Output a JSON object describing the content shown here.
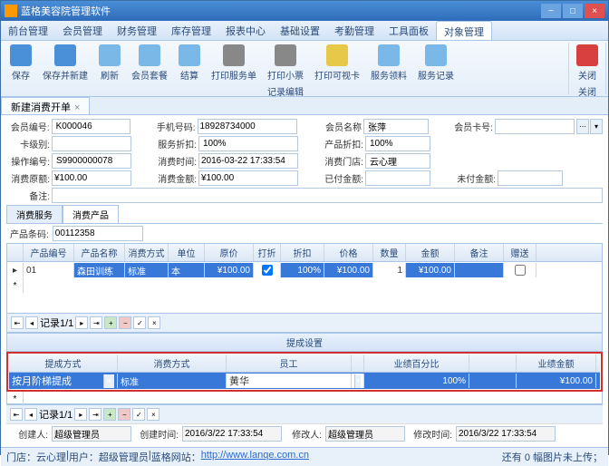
{
  "title": "蓝格美容院管理软件",
  "menu": [
    "前台管理",
    "会员管理",
    "财务管理",
    "库存管理",
    "报表中心",
    "基础设置",
    "考勤管理",
    "工具面板",
    "对象管理"
  ],
  "menu_active": 8,
  "tools": [
    {
      "l": "保存",
      "c": "save"
    },
    {
      "l": "保存并新建",
      "c": "save"
    },
    {
      "l": "刷新",
      "c": ""
    },
    {
      "l": "会员套餐",
      "c": ""
    },
    {
      "l": "结算",
      "c": ""
    },
    {
      "l": "打印服务单",
      "c": "print"
    },
    {
      "l": "打印小票",
      "c": "print"
    },
    {
      "l": "打印可视卡",
      "c": "yel"
    },
    {
      "l": "服务领料",
      "c": ""
    },
    {
      "l": "服务记录",
      "c": ""
    }
  ],
  "close_l": "关闭",
  "group1": "记录编辑",
  "group2": "关闭",
  "tab": "新建消费开单",
  "f": {
    "memno_l": "会员编号:",
    "memno": "K000046",
    "phone_l": "手机号码:",
    "phone": "18928734000",
    "name_l": "会员名称",
    "name": "张萍",
    "card_l": "会员卡号:",
    "level_l": "卡级别:",
    "svcdisc_l": "服务折扣:",
    "svcdisc": "100%",
    "proddisc_l": "产品折扣:",
    "proddisc": "100%",
    "opno_l": "操作编号:",
    "opno": "S9900000078",
    "time_l": "消费时间:",
    "time": "2016-03-22 17:33:54",
    "shop_l": "消费门店:",
    "shop": "云心理",
    "orig_l": "消费原额:",
    "orig": "¥100.00",
    "amt_l": "消费金额:",
    "amt": "¥100.00",
    "paid_l": "已付金额:",
    "unpaid_l": "未付金额:",
    "remark_l": "备注:"
  },
  "subtabs": [
    "消费服务",
    "消费产品"
  ],
  "barcode_l": "产品条码:",
  "barcode": "00112358",
  "gcol": [
    "",
    "产品编号",
    "产品名称",
    "消费方式",
    "单位",
    "原价",
    "打折",
    "折扣",
    "价格",
    "数量",
    "金额",
    "备注",
    "赠送"
  ],
  "gw": [
    18,
    56,
    56,
    48,
    40,
    54,
    30,
    48,
    54,
    36,
    54,
    54,
    36
  ],
  "grd": {
    "rn": "01",
    "name": "森田训练",
    "mode": "标准",
    "unit": "本",
    "price": "¥100.00",
    "disc": "100%",
    "p2": "¥100.00",
    "qty": "1",
    "amt": "¥100.00"
  },
  "nav": "记录1/1",
  "sec": "提成设置",
  "g2col": [
    "提成方式",
    "消费方式",
    "员工",
    "",
    "业绩百分比",
    "",
    "业绩金额"
  ],
  "g2w": [
    120,
    120,
    138,
    14,
    116,
    52,
    88
  ],
  "g2rd": {
    "mode": "按月阶梯提成",
    "cm": "标准",
    "emp": "黄华",
    "pct": "100%",
    "amt": "¥100.00"
  },
  "ft": {
    "creator_l": "创建人:",
    "creator": "超级管理员",
    "ctime_l": "创建时间:",
    "ctime": "2016/3/22 17:33:54",
    "mod_l": "修改人:",
    "mod": "超级管理员",
    "mtime_l": "修改时间:",
    "mtime": "2016/3/22 17:33:54"
  },
  "st": {
    "shop_l": "门店：",
    "shop": "云心理",
    "user_l": "用户：",
    "user": "超级管理员",
    "site_l": "蓝格网站：",
    "url": "http://www.lanqe.com.cn",
    "r": "还有 0 幅图片未上传；"
  }
}
